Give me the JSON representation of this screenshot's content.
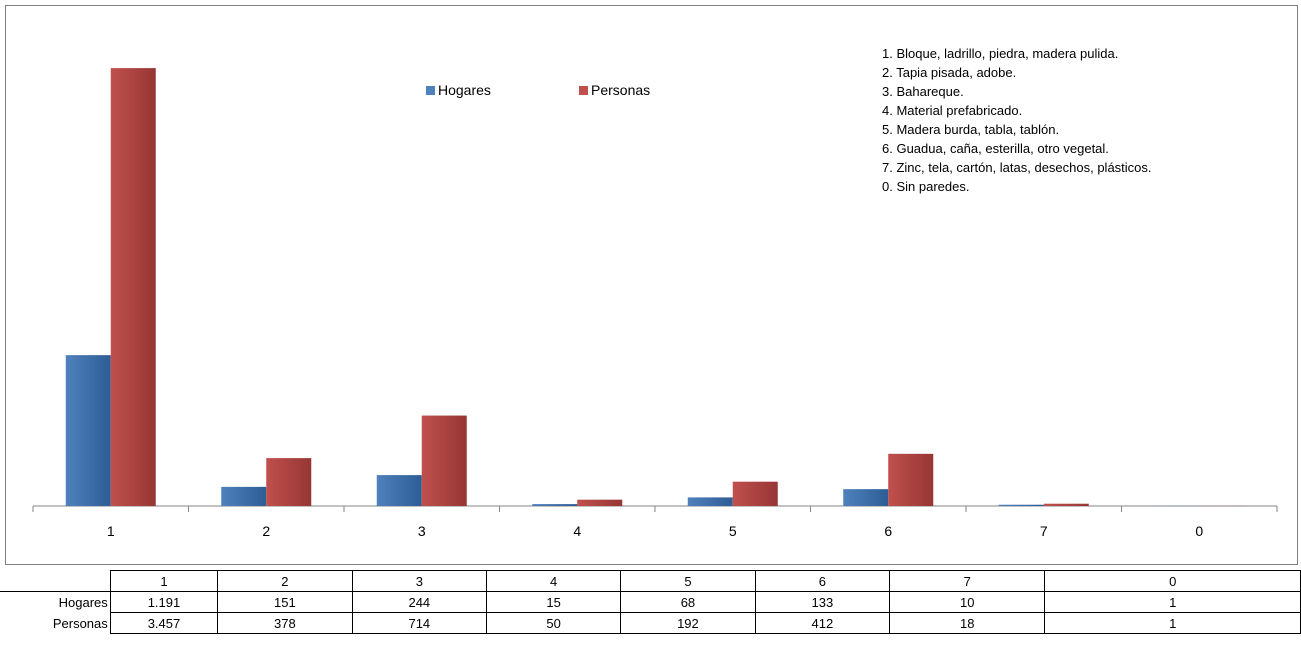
{
  "chart_data": {
    "type": "bar",
    "categories": [
      "1",
      "2",
      "3",
      "4",
      "5",
      "6",
      "7",
      "0"
    ],
    "series": [
      {
        "name": "Hogares",
        "values": [
          1191,
          151,
          244,
          15,
          68,
          133,
          10,
          1
        ],
        "color": "#4f81bd"
      },
      {
        "name": "Personas",
        "values": [
          3457,
          378,
          714,
          50,
          192,
          412,
          18,
          1
        ],
        "color": "#c0504d"
      }
    ],
    "ylim": [
      0,
      3600
    ],
    "grid": false,
    "legend_position": "top-center"
  },
  "notes": [
    "1. Bloque, ladrillo, piedra, madera pulida.",
    "2. Tapia pisada, adobe.",
    "3. Bahareque.",
    "4. Material prefabricado.",
    "5. Madera burda, tabla, tablón.",
    "6. Guadua, caña, esterilla, otro vegetal.",
    "7. Zinc, tela, cartón, latas, desechos, plásticos.",
    "0. Sin paredes."
  ],
  "table": {
    "header": [
      "1",
      "2",
      "3",
      "4",
      "5",
      "6",
      "7",
      "0"
    ],
    "rows": [
      {
        "label": "Hogares",
        "values": [
          "1.191",
          "151",
          "244",
          "15",
          "68",
          "133",
          "10",
          "1"
        ]
      },
      {
        "label": "Personas",
        "values": [
          "3.457",
          "378",
          "714",
          "50",
          "192",
          "412",
          "18",
          "1"
        ]
      }
    ]
  }
}
